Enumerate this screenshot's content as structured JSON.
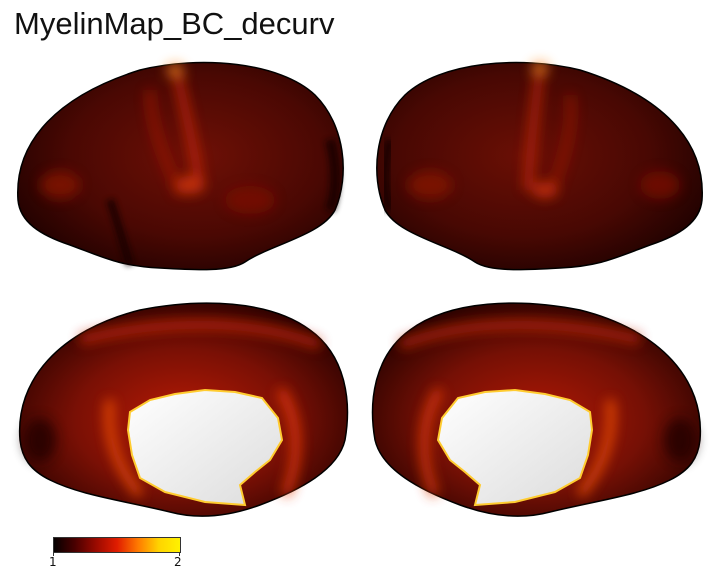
{
  "figure": {
    "title": "MyelinMap_BC_decurv",
    "colorbar": {
      "min_label": "1",
      "max_label": "2",
      "stops": [
        "#050000",
        "#4a0000",
        "#9a0a00",
        "#e01c00",
        "#ff7a00",
        "#ffd400",
        "#fff200"
      ]
    },
    "views": [
      {
        "name": "lateral-left"
      },
      {
        "name": "lateral-right"
      },
      {
        "name": "medial-left"
      },
      {
        "name": "medial-right"
      }
    ],
    "colors": {
      "base": "#5a0c05",
      "dark": "#1a0000",
      "bright": "#e83a10",
      "wall": "#f2f2f2"
    }
  }
}
